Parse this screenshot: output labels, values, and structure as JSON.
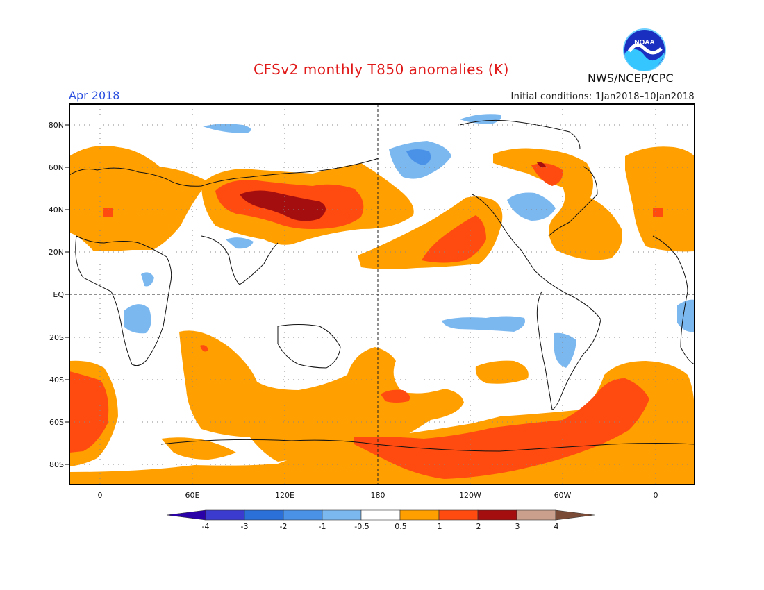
{
  "header": {
    "title": "CFSv2 monthly T850 anomalies (K)",
    "month": "Apr 2018",
    "initial_conditions": "Initial conditions: 1Jan2018–10Jan2018",
    "agency": "NWS/NCEP/CPC",
    "logo_text": "NOAA"
  },
  "axes": {
    "lat_labels": [
      "80N",
      "60N",
      "40N",
      "20N",
      "EQ",
      "20S",
      "40S",
      "60S",
      "80S"
    ],
    "lon_labels": [
      "0",
      "60E",
      "120E",
      "180",
      "120W",
      "60W",
      "0"
    ]
  },
  "colorbar": {
    "labels": [
      "-4",
      "-3",
      "-2",
      "-1",
      "-0.5",
      "0.5",
      "1",
      "2",
      "3",
      "4"
    ],
    "colors": [
      "#2a00a8",
      "#3b3bcf",
      "#2b6fd8",
      "#4a92e8",
      "#7cb8f0",
      "#ffffff",
      "#ff9f00",
      "#ff4a10",
      "#a50e0e",
      "#caa08c",
      "#7a4b36"
    ]
  }
}
